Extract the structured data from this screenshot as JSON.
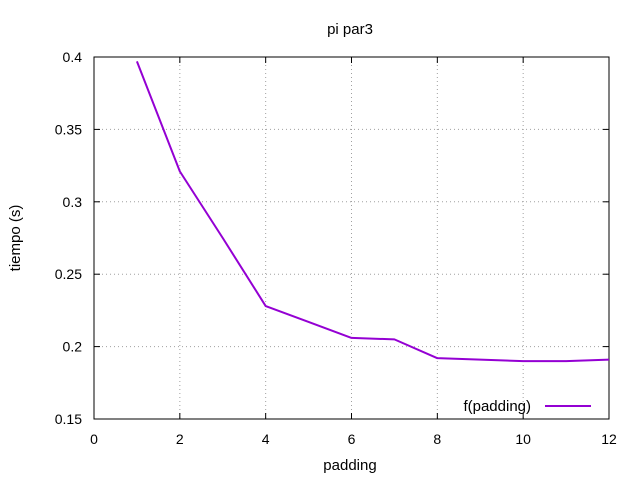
{
  "chart_data": {
    "type": "line",
    "title": "pi par3",
    "xlabel": "padding",
    "ylabel": "tiempo (s)",
    "xlim": [
      0,
      12
    ],
    "ylim": [
      0.15,
      0.4
    ],
    "xticks": [
      "0",
      "2",
      "4",
      "6",
      "8",
      "10",
      "12"
    ],
    "yticks": [
      "0.15",
      "0.2",
      "0.25",
      "0.3",
      "0.35",
      "0.4"
    ],
    "grid": true,
    "legend_position": "bottom-right",
    "series": [
      {
        "name": "f(padding)",
        "color": "#9400d3",
        "x": [
          1,
          2,
          3,
          4,
          5,
          6,
          7,
          8,
          9,
          10,
          11,
          12
        ],
        "y": [
          0.397,
          0.321,
          0.275,
          0.228,
          0.217,
          0.206,
          0.205,
          0.192,
          0.191,
          0.19,
          0.19,
          0.191
        ]
      }
    ]
  }
}
